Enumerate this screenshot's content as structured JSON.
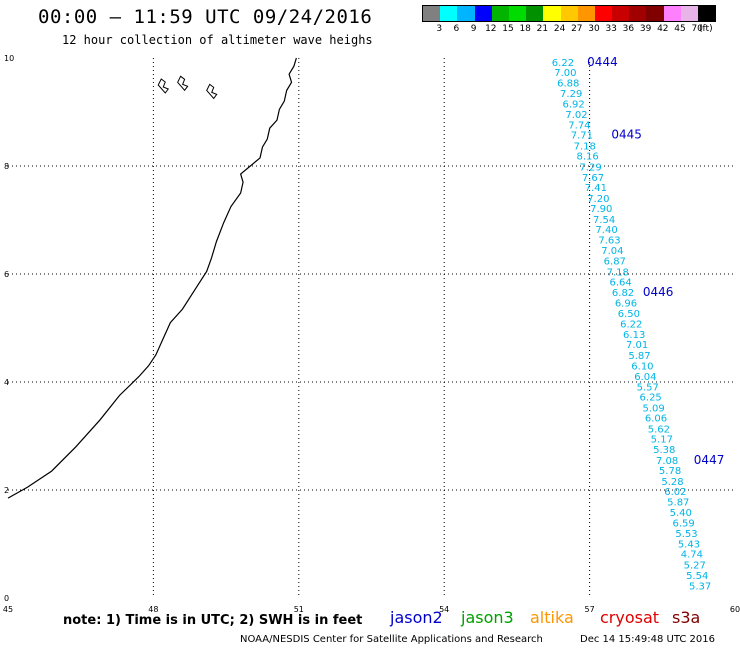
{
  "header": {
    "title": "00:00 – 11:59 UTC 09/24/2016",
    "subtitle": "12 hour collection of altimeter wave heighs"
  },
  "legend": {
    "swatch_colors": [
      "#808080",
      "#00ffff",
      "#00b4ff",
      "#0000ff",
      "#00b400",
      "#00dc00",
      "#009000",
      "#ffff00",
      "#ffc800",
      "#ff9600",
      "#ff0000",
      "#c80000",
      "#a00000",
      "#800000",
      "#ff80ff",
      "#e8b4e8",
      "#000000"
    ],
    "labels": [
      "3",
      "6",
      "9",
      "12",
      "15",
      "18",
      "21",
      "24",
      "27",
      "30",
      "33",
      "36",
      "39",
      "42",
      "45",
      "70",
      "(ft)"
    ]
  },
  "chart_data": {
    "type": "scatter",
    "xlim": [
      45,
      60
    ],
    "ylim": [
      0,
      10
    ],
    "x_ticks": [
      "45",
      "48",
      "51",
      "54",
      "57",
      "60"
    ],
    "y_ticks": [
      "0",
      "2",
      "4",
      "6",
      "8",
      "10"
    ],
    "grid": true,
    "series": [
      {
        "name": "jason2",
        "color": "#00b4e6",
        "points": [
          {
            "x": 56.45,
            "y": 9.93,
            "v": "6.22"
          },
          {
            "x": 56.5,
            "y": 9.74,
            "v": "7.00"
          },
          {
            "x": 56.56,
            "y": 9.55,
            "v": "6.88"
          },
          {
            "x": 56.62,
            "y": 9.35,
            "v": "7.29"
          },
          {
            "x": 56.67,
            "y": 9.16,
            "v": "6.92"
          },
          {
            "x": 56.73,
            "y": 8.96,
            "v": "7.02"
          },
          {
            "x": 56.79,
            "y": 8.77,
            "v": "7.74"
          },
          {
            "x": 56.84,
            "y": 8.58,
            "v": "7.71"
          },
          {
            "x": 56.9,
            "y": 8.38,
            "v": "7.18"
          },
          {
            "x": 56.96,
            "y": 8.19,
            "v": "8.16"
          },
          {
            "x": 57.02,
            "y": 7.99,
            "v": "7.29"
          },
          {
            "x": 57.07,
            "y": 7.8,
            "v": "7.67"
          },
          {
            "x": 57.13,
            "y": 7.61,
            "v": "7.41"
          },
          {
            "x": 57.18,
            "y": 7.41,
            "v": "7.20"
          },
          {
            "x": 57.24,
            "y": 7.22,
            "v": "7.90"
          },
          {
            "x": 57.3,
            "y": 7.02,
            "v": "7.54"
          },
          {
            "x": 57.35,
            "y": 6.83,
            "v": "7.40"
          },
          {
            "x": 57.41,
            "y": 6.64,
            "v": "7.63"
          },
          {
            "x": 57.47,
            "y": 6.44,
            "v": "7.04"
          },
          {
            "x": 57.52,
            "y": 6.25,
            "v": "6.87"
          },
          {
            "x": 57.58,
            "y": 6.05,
            "v": "7.18"
          },
          {
            "x": 57.64,
            "y": 5.86,
            "v": "6.64"
          },
          {
            "x": 57.69,
            "y": 5.67,
            "v": "6.82"
          },
          {
            "x": 57.75,
            "y": 5.47,
            "v": "6.96"
          },
          {
            "x": 57.81,
            "y": 5.28,
            "v": "6.50"
          },
          {
            "x": 57.86,
            "y": 5.08,
            "v": "6.22"
          },
          {
            "x": 57.92,
            "y": 4.89,
            "v": "6.13"
          },
          {
            "x": 57.98,
            "y": 4.7,
            "v": "7.01"
          },
          {
            "x": 58.03,
            "y": 4.5,
            "v": "5.87"
          },
          {
            "x": 58.09,
            "y": 4.31,
            "v": "6.10"
          },
          {
            "x": 58.15,
            "y": 4.11,
            "v": "6.04"
          },
          {
            "x": 58.2,
            "y": 3.92,
            "v": "5.57"
          },
          {
            "x": 58.26,
            "y": 3.73,
            "v": "6.25"
          },
          {
            "x": 58.32,
            "y": 3.53,
            "v": "5.09"
          },
          {
            "x": 58.37,
            "y": 3.34,
            "v": "6.06"
          },
          {
            "x": 58.43,
            "y": 3.14,
            "v": "5.62"
          },
          {
            "x": 58.49,
            "y": 2.95,
            "v": "5.17"
          },
          {
            "x": 58.54,
            "y": 2.76,
            "v": "5.38"
          },
          {
            "x": 58.6,
            "y": 2.56,
            "v": "7.08"
          },
          {
            "x": 58.66,
            "y": 2.37,
            "v": "5.78"
          },
          {
            "x": 58.71,
            "y": 2.17,
            "v": "5.28"
          },
          {
            "x": 58.77,
            "y": 1.98,
            "v": "6.02"
          },
          {
            "x": 58.83,
            "y": 1.79,
            "v": "5.87"
          },
          {
            "x": 58.88,
            "y": 1.59,
            "v": "5.40"
          },
          {
            "x": 58.94,
            "y": 1.4,
            "v": "6.59"
          },
          {
            "x": 59.0,
            "y": 1.2,
            "v": "5.53"
          },
          {
            "x": 59.05,
            "y": 1.01,
            "v": "5.43"
          },
          {
            "x": 59.11,
            "y": 0.82,
            "v": "4.74"
          },
          {
            "x": 59.17,
            "y": 0.62,
            "v": "5.27"
          },
          {
            "x": 59.22,
            "y": 0.43,
            "v": "5.54"
          },
          {
            "x": 59.28,
            "y": 0.23,
            "v": "5.37"
          }
        ]
      }
    ],
    "time_marks": [
      {
        "label": "0444",
        "x": 56.95,
        "y": 9.93
      },
      {
        "label": "0445",
        "x": 57.45,
        "y": 8.58
      },
      {
        "label": "0446",
        "x": 58.1,
        "y": 5.67
      },
      {
        "label": "0447",
        "x": 59.15,
        "y": 2.56
      }
    ],
    "coastline": [
      [
        45.0,
        1.85
      ],
      [
        45.4,
        2.05
      ],
      [
        45.9,
        2.35
      ],
      [
        46.4,
        2.8
      ],
      [
        46.9,
        3.3
      ],
      [
        47.3,
        3.75
      ],
      [
        47.7,
        4.1
      ],
      [
        47.9,
        4.3
      ],
      [
        48.05,
        4.5
      ],
      [
        48.2,
        4.8
      ],
      [
        48.35,
        5.1
      ],
      [
        48.6,
        5.35
      ],
      [
        48.85,
        5.7
      ],
      [
        49.1,
        6.05
      ],
      [
        49.2,
        6.3
      ],
      [
        49.3,
        6.6
      ],
      [
        49.45,
        6.95
      ],
      [
        49.6,
        7.25
      ],
      [
        49.8,
        7.5
      ],
      [
        49.85,
        7.7
      ],
      [
        49.8,
        7.85
      ],
      [
        50.0,
        8.0
      ],
      [
        50.2,
        8.15
      ],
      [
        50.25,
        8.35
      ],
      [
        50.35,
        8.5
      ],
      [
        50.4,
        8.7
      ],
      [
        50.55,
        8.85
      ],
      [
        50.6,
        9.05
      ],
      [
        50.7,
        9.2
      ],
      [
        50.75,
        9.4
      ],
      [
        50.85,
        9.55
      ],
      [
        50.8,
        9.7
      ],
      [
        50.9,
        9.85
      ],
      [
        50.95,
        10.0
      ]
    ]
  },
  "footer": {
    "note": "note: 1) Time is in UTC; 2) SWH is in feet",
    "satellites": [
      {
        "name": "jason2",
        "color": "#0000cc"
      },
      {
        "name": "jason3",
        "color": "#00a000"
      },
      {
        "name": "altika",
        "color": "#ff9600"
      },
      {
        "name": "cryosat",
        "color": "#e00000"
      },
      {
        "name": "s3a",
        "color": "#800000"
      }
    ],
    "credit": "NOAA/NESDIS Center for Satellite Applications and Research",
    "date": "Dec 14 15:49:48 UTC 2016"
  }
}
